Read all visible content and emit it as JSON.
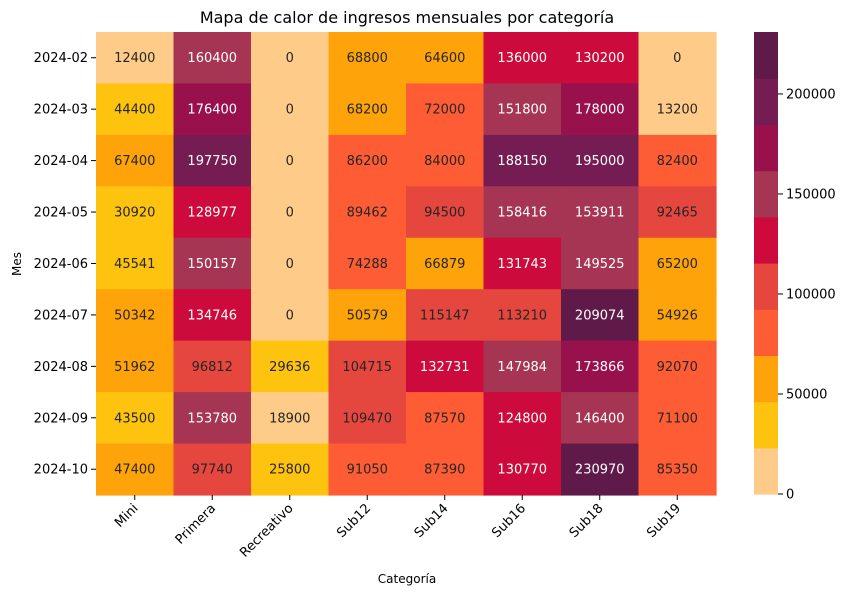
{
  "chart_data": {
    "type": "heatmap",
    "title": "Mapa de calor de ingresos mensuales por categoría",
    "xlabel": "Categoría",
    "ylabel": "Mes",
    "x_categories": [
      "Mini",
      "Primera",
      "Recreativo",
      "Sub12",
      "Sub14",
      "Sub16",
      "Sub18",
      "Sub19"
    ],
    "y_categories": [
      "2024-02",
      "2024-03",
      "2024-04",
      "2024-05",
      "2024-06",
      "2024-07",
      "2024-08",
      "2024-09",
      "2024-10"
    ],
    "values": [
      [
        12400,
        160400,
        0,
        68800,
        64600,
        136000,
        130200,
        0
      ],
      [
        44400,
        176400,
        0,
        68200,
        72000,
        151800,
        178000,
        13200
      ],
      [
        67400,
        197750,
        0,
        86200,
        84000,
        188150,
        195000,
        82400
      ],
      [
        30920,
        128977,
        0,
        89462,
        94500,
        158416,
        153911,
        92465
      ],
      [
        45541,
        150157,
        0,
        74288,
        66879,
        131743,
        149525,
        65200
      ],
      [
        50342,
        134746,
        0,
        50579,
        115147,
        113210,
        209074,
        54926
      ],
      [
        51962,
        96812,
        29636,
        104715,
        132731,
        147984,
        173866,
        92070
      ],
      [
        43500,
        153780,
        18900,
        109470,
        87570,
        124800,
        146400,
        71100
      ],
      [
        47400,
        97740,
        25800,
        91050,
        87390,
        130770,
        230970,
        85350
      ]
    ],
    "colorbar": {
      "min": 0,
      "max": 230970,
      "ticks": [
        0,
        50000,
        100000,
        150000,
        200000
      ],
      "colors": [
        "#fecc88",
        "#fec30f",
        "#fea40a",
        "#fe5c35",
        "#e5463e",
        "#cc0a3b",
        "#a63553",
        "#98114d",
        "#751d52",
        "#5f1a49"
      ]
    }
  }
}
